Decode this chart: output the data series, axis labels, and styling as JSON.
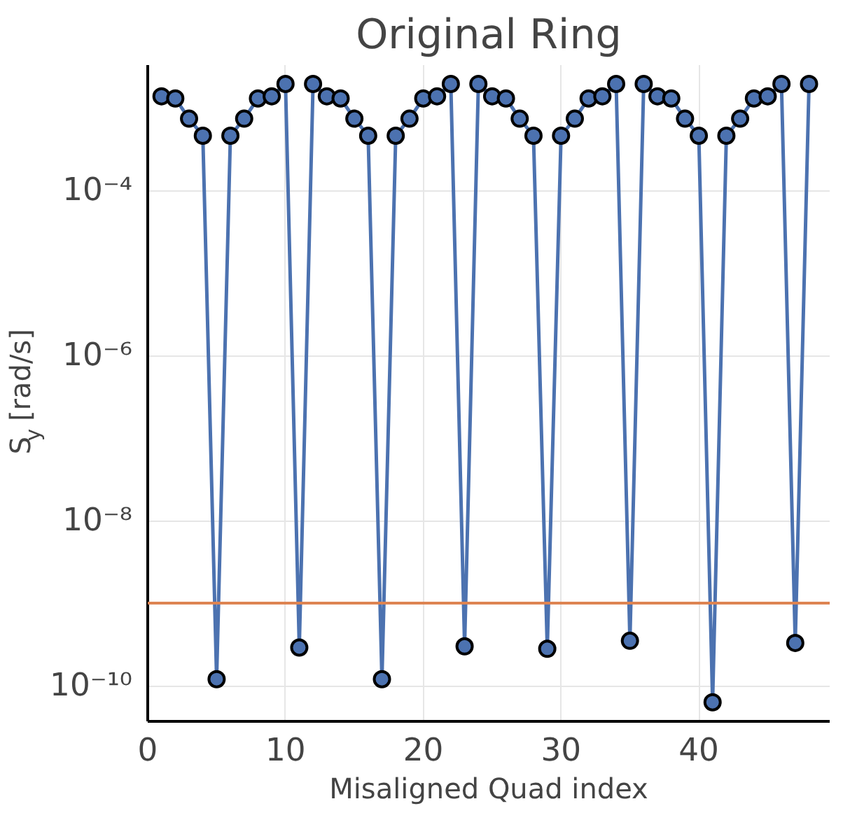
{
  "chart_data": {
    "type": "line",
    "title": "Original Ring",
    "xlabel": "Misaligned Quad index",
    "ylabel": "S$_{y}$ [rad/s]",
    "x": [
      1,
      2,
      3,
      4,
      5,
      6,
      7,
      8,
      9,
      10,
      11,
      12,
      13,
      14,
      15,
      16,
      17,
      18,
      19,
      20,
      21,
      22,
      23,
      24,
      25,
      26,
      27,
      28,
      29,
      30,
      31,
      32,
      33,
      34,
      35,
      36,
      37,
      38,
      39,
      40,
      41,
      42,
      43,
      44,
      45,
      46,
      47,
      48
    ],
    "series": [
      {
        "color": "#4c72b0",
        "values": [
          0.00138,
          0.0013,
          0.00074,
          0.00046,
          1.2e-10,
          0.00046,
          0.00074,
          0.0013,
          0.00138,
          0.00195,
          2.9e-10,
          0.00195,
          0.00138,
          0.0013,
          0.00074,
          0.00046,
          1.2e-10,
          0.00046,
          0.00074,
          0.0013,
          0.00138,
          0.00195,
          3e-10,
          0.00195,
          0.00138,
          0.0013,
          0.00074,
          0.00046,
          2.8e-10,
          0.00046,
          0.00074,
          0.0013,
          0.00138,
          0.00195,
          3.5e-10,
          0.00195,
          0.00138,
          0.0013,
          0.00074,
          0.00046,
          6.3e-11,
          0.00046,
          0.00074,
          0.0013,
          0.00138,
          0.00195,
          3.3e-10,
          0.00195
        ]
      }
    ],
    "ref_lines": [
      {
        "axis": "y",
        "value": 1e-09,
        "color": "#dd8452"
      }
    ],
    "xlim": [
      0,
      49.5
    ],
    "xticks": [
      0,
      10,
      20,
      30,
      40
    ],
    "ylim": [
      3.7e-11,
      0.0033
    ],
    "yticks": [
      {
        "value": 1e-10,
        "label": "10⁻¹⁰"
      },
      {
        "value": 1e-08,
        "label": "10⁻⁸"
      },
      {
        "value": 1e-06,
        "label": "10⁻⁶"
      },
      {
        "value": 0.0001,
        "label": "10⁻⁴"
      }
    ],
    "log": "y",
    "grid": true,
    "marker": "circle",
    "line_style": "solid"
  }
}
